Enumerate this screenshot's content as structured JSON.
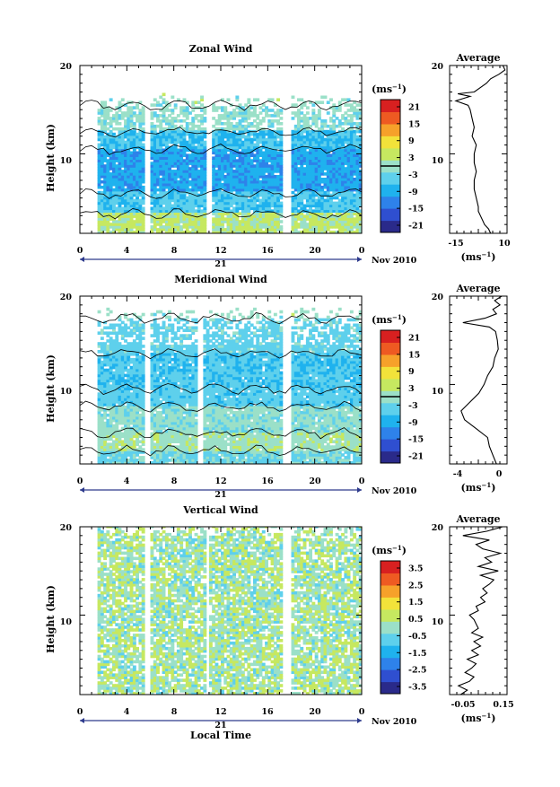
{
  "figure": {
    "xlabel": "Local Time",
    "ylabel": "Height (km)",
    "date_label": "Nov 2010",
    "day_label": "21",
    "unit_label": "(ms",
    "unit_exp": "−1",
    "avg_title": "Average",
    "colors": {
      "palette": [
        "#2a2a8a",
        "#2f4fd0",
        "#2e82ea",
        "#1fb2ee",
        "#5ed0ec",
        "#9be0c8",
        "#c6e860",
        "#f2e23a",
        "#f6a12a",
        "#ee5a22",
        "#d82020"
      ]
    }
  },
  "chart_data": [
    {
      "type": "heatmap",
      "title": "Zonal Wind",
      "x_range": [
        0,
        24
      ],
      "x_ticks": [
        "0",
        "4",
        "8",
        "12",
        "16",
        "20",
        "0"
      ],
      "y_range": [
        1,
        20
      ],
      "y_ticks": [
        "10",
        "20"
      ],
      "colorbar": {
        "labels": [
          "21",
          "15",
          "9",
          "3",
          "-3",
          "-9",
          "-15",
          "-21"
        ],
        "zero_line": 0
      },
      "gaps_hours": [
        [
          0,
          1.3
        ],
        [
          5.3,
          5.8
        ],
        [
          10.7,
          11.1
        ],
        [
          17.2,
          18.0
        ]
      ],
      "layers": [
        {
          "from": 1.0,
          "to": 3.2,
          "value": 3
        },
        {
          "from": 3.2,
          "to": 5.5,
          "value": -6
        },
        {
          "from": 5.5,
          "to": 10.5,
          "value": -10
        },
        {
          "from": 10.5,
          "to": 12.5,
          "value": -7
        },
        {
          "from": 12.5,
          "to": 15.5,
          "value": -1
        }
      ],
      "top_km": 15.5,
      "average": {
        "title": "Average",
        "xlabel": "(ms",
        "xlabel_exp": "−1",
        "x_ticks": [
          "-15",
          "10"
        ],
        "x_range": [
          -18,
          10
        ],
        "y_ticks": [
          "10",
          "20"
        ],
        "height": [
          1.0,
          1.5,
          2.0,
          2.5,
          3.0,
          3.5,
          4.0,
          5.0,
          6.0,
          7.0,
          8.0,
          9.0,
          10.0,
          11.0,
          12.0,
          13.0,
          14.0,
          15.0,
          15.5,
          16.0,
          16.5,
          16.8,
          17.0,
          17.5,
          18.0,
          18.5,
          19.0,
          19.5,
          20.0
        ],
        "values": [
          2,
          1,
          -1,
          -2,
          -3,
          -4,
          -4,
          -5,
          -6,
          -6,
          -5,
          -6,
          -6,
          -5,
          -7,
          -6,
          -7,
          -8,
          -9,
          -15,
          -8,
          -14,
          -6,
          -3,
          0,
          2,
          6,
          9,
          8
        ]
      }
    },
    {
      "type": "heatmap",
      "title": "Meridional Wind",
      "x_range": [
        0,
        24
      ],
      "x_ticks": [
        "0",
        "4",
        "8",
        "12",
        "16",
        "20",
        "0"
      ],
      "y_range": [
        1,
        20
      ],
      "y_ticks": [
        "10",
        "20"
      ],
      "colorbar": {
        "labels": [
          "21",
          "15",
          "9",
          "3",
          "-3",
          "-9",
          "-15",
          "-21"
        ],
        "zero_line": 0
      },
      "gaps_hours": [
        [
          0,
          1.3
        ],
        [
          5.3,
          5.8
        ],
        [
          9.8,
          10.3
        ],
        [
          17.2,
          17.8
        ]
      ],
      "layers": [
        {
          "from": 1.0,
          "to": 2.5,
          "value": -3
        },
        {
          "from": 2.5,
          "to": 4.5,
          "value": 1
        },
        {
          "from": 4.5,
          "to": 7.5,
          "value": -1
        },
        {
          "from": 7.5,
          "to": 9.5,
          "value": -5
        },
        {
          "from": 9.5,
          "to": 13.5,
          "value": -6
        },
        {
          "from": 13.5,
          "to": 17.5,
          "value": -4
        }
      ],
      "top_km": 17.5,
      "average": {
        "title": "Average",
        "xlabel": "(ms",
        "xlabel_exp": "−1",
        "x_ticks": [
          "-4",
          "0"
        ],
        "x_range": [
          -5.5,
          1
        ],
        "y_ticks": [
          "10",
          "20"
        ],
        "height": [
          1.0,
          2.0,
          3.0,
          4.0,
          5.0,
          6.0,
          7.0,
          8.0,
          9.0,
          10.0,
          11.0,
          12.0,
          13.0,
          14.0,
          15.0,
          16.0,
          16.5,
          17.0,
          17.5,
          18.0,
          18.5,
          19.0,
          19.5,
          20.0
        ],
        "values": [
          -0.2,
          -0.6,
          -1.0,
          -1.2,
          -2.5,
          -3.8,
          -4.2,
          -3.2,
          -2.2,
          -1.6,
          -1.2,
          -0.6,
          -0.4,
          0.0,
          -0.1,
          -0.3,
          -1.0,
          -4.0,
          -1.5,
          -0.2,
          -0.6,
          0.2,
          -0.4,
          0.4
        ]
      }
    },
    {
      "type": "heatmap",
      "title": "Vertical Wind",
      "x_range": [
        0,
        24
      ],
      "x_ticks": [
        "0",
        "4",
        "8",
        "12",
        "16",
        "20",
        "0"
      ],
      "y_range": [
        1,
        20
      ],
      "y_ticks": [
        "10",
        "20"
      ],
      "colorbar": {
        "labels": [
          "3.5",
          "2.5",
          "1.5",
          "0.5",
          "-0.5",
          "-1.5",
          "-2.5",
          "-3.5"
        ],
        "zero_line": null
      },
      "gaps_hours": [
        [
          0,
          1.3
        ],
        [
          5.3,
          5.8
        ],
        [
          10.7,
          11.0
        ],
        [
          17.2,
          17.8
        ]
      ],
      "layers": [
        {
          "from": 1.0,
          "to": 20.0,
          "value": 0.2
        }
      ],
      "top_km": 19.5,
      "average": {
        "title": "Average",
        "xlabel": "(ms",
        "xlabel_exp": "−1",
        "x_ticks": [
          "-0.05",
          "0.15"
        ],
        "x_range": [
          -0.08,
          0.18
        ],
        "y_ticks": [
          "10",
          "20"
        ],
        "height": [
          1.0,
          1.5,
          2.0,
          2.5,
          3.0,
          3.5,
          4.0,
          4.5,
          5.0,
          5.5,
          6.0,
          6.5,
          7.0,
          7.5,
          8.0,
          8.5,
          9.0,
          9.5,
          10.0,
          10.5,
          11.0,
          11.5,
          12.0,
          12.5,
          13.0,
          13.5,
          14.0,
          14.5,
          15.0,
          15.5,
          16.0,
          16.5,
          17.0,
          17.5,
          18.0,
          18.5,
          19.0,
          19.5,
          20.0
        ],
        "values": [
          -0.03,
          0.0,
          -0.04,
          0.01,
          0.03,
          -0.01,
          0.02,
          0.04,
          0.0,
          0.05,
          0.02,
          0.06,
          0.03,
          0.07,
          0.02,
          0.05,
          0.04,
          0.03,
          0.01,
          0.05,
          0.04,
          0.08,
          0.06,
          0.09,
          0.07,
          0.1,
          0.12,
          0.06,
          0.14,
          0.05,
          0.11,
          0.08,
          0.15,
          0.07,
          0.04,
          0.1,
          -0.02,
          0.09,
          0.16
        ]
      }
    }
  ]
}
